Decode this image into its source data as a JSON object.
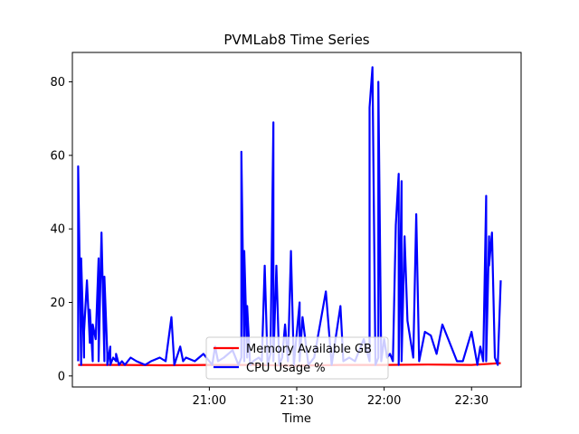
{
  "chart_data": {
    "type": "line",
    "title": "PVMLab8 Time Series",
    "xlabel": "Time",
    "ylabel": "",
    "x_start": "20:15",
    "x_end": "22:40",
    "xlim": [
      "20:13",
      "22:47"
    ],
    "ylim": [
      -3,
      88
    ],
    "x_ticks": [
      "21:00",
      "21:30",
      "22:00",
      "22:30"
    ],
    "y_ticks": [
      0,
      20,
      40,
      60,
      80
    ],
    "grid": false,
    "legend_placement": "bottom-center",
    "series": [
      {
        "name": "Memory Available GB",
        "color": "#ff0000",
        "x": [
          "20:15",
          "20:30",
          "20:45",
          "21:00",
          "21:15",
          "21:30",
          "21:45",
          "22:00",
          "22:15",
          "22:30",
          "22:40"
        ],
        "values": [
          3.0,
          3.0,
          2.9,
          3.0,
          3.0,
          2.8,
          3.0,
          3.0,
          3.1,
          3.0,
          3.5
        ]
      },
      {
        "name": "CPU Usage %",
        "color": "#0000ff",
        "x": [
          "20:15",
          "20:15",
          "20:16",
          "20:16",
          "20:17",
          "20:17",
          "20:18",
          "20:19",
          "20:19",
          "20:20",
          "20:20",
          "20:21",
          "20:22",
          "20:22",
          "20:23",
          "20:24",
          "20:24",
          "20:25",
          "20:25",
          "20:26",
          "20:26",
          "20:27",
          "20:28",
          "20:28",
          "20:29",
          "20:30",
          "20:31",
          "20:33",
          "20:35",
          "20:38",
          "20:40",
          "20:43",
          "20:45",
          "20:47",
          "20:48",
          "20:50",
          "20:51",
          "20:52",
          "20:55",
          "20:58",
          "21:01",
          "21:02",
          "21:03",
          "21:05",
          "21:08",
          "21:10",
          "21:11",
          "21:11",
          "21:12",
          "21:12",
          "21:13",
          "21:13",
          "21:14",
          "21:15",
          "21:17",
          "21:18",
          "21:19",
          "21:20",
          "21:21",
          "21:22",
          "21:22",
          "21:23",
          "21:24",
          "21:25",
          "21:26",
          "21:27",
          "21:28",
          "21:29",
          "21:31",
          "21:31",
          "21:32",
          "21:34",
          "21:35",
          "21:36",
          "21:40",
          "21:42",
          "21:45",
          "21:46",
          "21:48",
          "21:50",
          "21:51",
          "21:53",
          "21:55",
          "21:55",
          "21:56",
          "21:57",
          "21:58",
          "21:58",
          "21:59",
          "22:00",
          "22:01",
          "22:02",
          "22:03",
          "22:04",
          "22:05",
          "22:05",
          "22:06",
          "22:06",
          "22:07",
          "22:08",
          "22:10",
          "22:11",
          "22:12",
          "22:14",
          "22:16",
          "22:18",
          "22:20",
          "22:22",
          "22:25",
          "22:27",
          "22:30",
          "22:32",
          "22:33",
          "22:34",
          "22:35",
          "22:35",
          "22:36",
          "22:36",
          "22:37",
          "22:38",
          "22:39",
          "22:40"
        ],
        "values": [
          4,
          57,
          3,
          32,
          5,
          12,
          26,
          9,
          18,
          4,
          14,
          10,
          32,
          4,
          39,
          4,
          27,
          6,
          3,
          8,
          3,
          5,
          4,
          6,
          3,
          4,
          3,
          5,
          4,
          3,
          4,
          5,
          4,
          16,
          3,
          8,
          4,
          5,
          4,
          6,
          3,
          8,
          4,
          5,
          7,
          3,
          5,
          61,
          4,
          34,
          5,
          19,
          3,
          4,
          5,
          4,
          30,
          3,
          6,
          69,
          4,
          30,
          3,
          5,
          14,
          4,
          34,
          3,
          20,
          4,
          16,
          3,
          4,
          5,
          23,
          3,
          19,
          4,
          5,
          4,
          6,
          10,
          4,
          73,
          84,
          3,
          5,
          80,
          4,
          10,
          5,
          6,
          4,
          41,
          55,
          3,
          53,
          4,
          38,
          15,
          5,
          44,
          4,
          12,
          11,
          6,
          14,
          10,
          4,
          4,
          12,
          3,
          8,
          4,
          49,
          4,
          38,
          30,
          39,
          5,
          3,
          26
        ]
      }
    ]
  }
}
